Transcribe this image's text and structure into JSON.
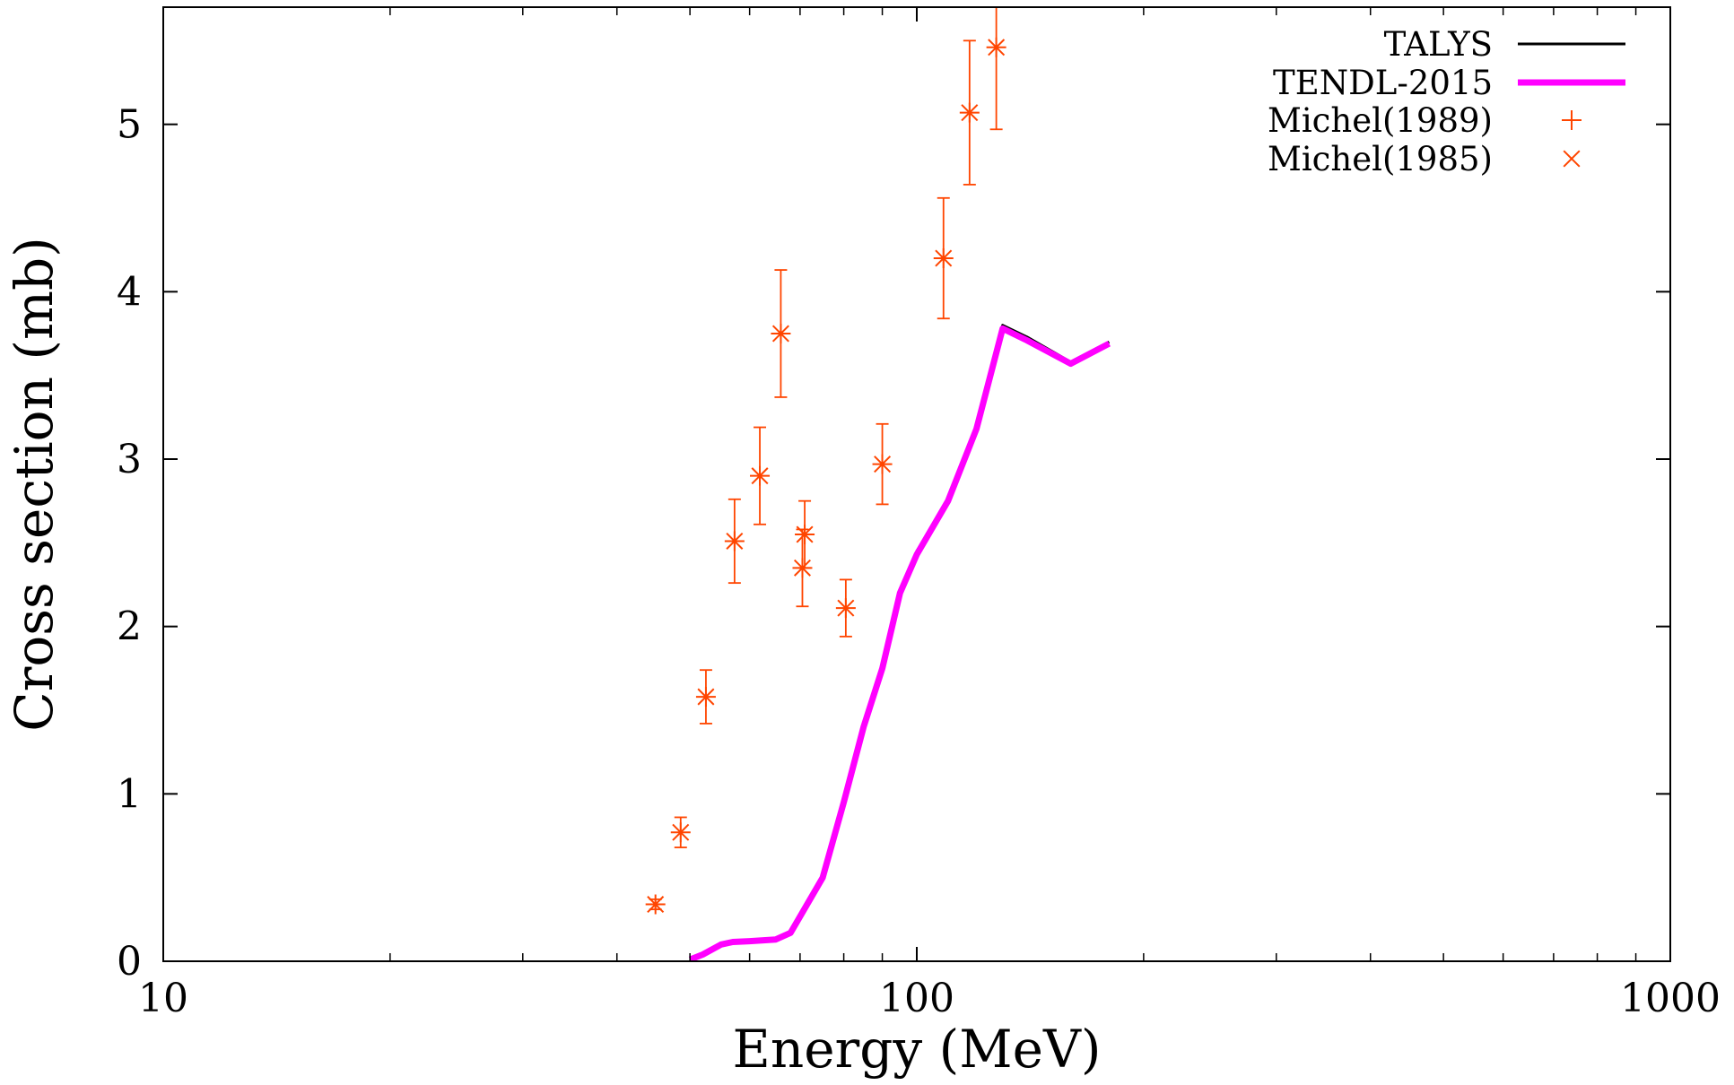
{
  "chart_data": {
    "type": "line",
    "xlabel": "Energy (MeV)",
    "ylabel": "Cross section (mb)",
    "xscale": "log",
    "xlim": [
      10,
      1000
    ],
    "ylim": [
      0,
      5.7
    ],
    "x_ticks": [
      {
        "value": 10,
        "label": "10"
      },
      {
        "value": 100,
        "label": "100"
      },
      {
        "value": 1000,
        "label": "1000"
      }
    ],
    "y_ticks": [
      {
        "value": 0,
        "label": "0"
      },
      {
        "value": 1,
        "label": "1"
      },
      {
        "value": 2,
        "label": "2"
      },
      {
        "value": 3,
        "label": "3"
      },
      {
        "value": 4,
        "label": "4"
      },
      {
        "value": 5,
        "label": "5"
      }
    ],
    "legend_position": "top-right",
    "grid": false,
    "series": [
      {
        "name": "TALYS",
        "kind": "line",
        "color": "#000000",
        "points": [
          [
            50,
            0.01
          ],
          [
            52,
            0.04
          ],
          [
            55,
            0.1
          ],
          [
            57,
            0.115
          ],
          [
            60,
            0.12
          ],
          [
            65,
            0.13
          ],
          [
            68,
            0.17
          ],
          [
            75,
            0.5
          ],
          [
            80,
            0.95
          ],
          [
            85,
            1.4
          ],
          [
            90,
            1.75
          ],
          [
            95,
            2.2
          ],
          [
            100,
            2.45
          ],
          [
            110,
            2.75
          ],
          [
            120,
            3.2
          ],
          [
            130,
            3.8
          ],
          [
            140,
            3.73
          ],
          [
            160,
            3.58
          ],
          [
            180,
            3.7
          ]
        ]
      },
      {
        "name": "TENDL-2015",
        "kind": "line",
        "color": "#ff00ff",
        "points": [
          [
            50,
            0.01
          ],
          [
            52,
            0.04
          ],
          [
            55,
            0.1
          ],
          [
            57,
            0.115
          ],
          [
            60,
            0.12
          ],
          [
            65,
            0.13
          ],
          [
            68,
            0.17
          ],
          [
            75,
            0.5
          ],
          [
            80,
            0.95
          ],
          [
            85,
            1.4
          ],
          [
            90,
            1.75
          ],
          [
            95,
            2.2
          ],
          [
            100,
            2.43
          ],
          [
            110,
            2.75
          ],
          [
            120,
            3.18
          ],
          [
            130,
            3.78
          ],
          [
            140,
            3.71
          ],
          [
            160,
            3.57
          ],
          [
            180,
            3.69
          ]
        ]
      },
      {
        "name": "Michel(1989)",
        "kind": "points",
        "marker": "plus",
        "color": "#ff4500",
        "points": [
          {
            "x": 45.0,
            "y": 0.34,
            "err": 0.03
          },
          {
            "x": 48.6,
            "y": 0.77,
            "err": 0.09
          },
          {
            "x": 52.5,
            "y": 1.58,
            "err": 0.16
          },
          {
            "x": 57.3,
            "y": 2.51,
            "err": 0.25
          },
          {
            "x": 61.9,
            "y": 2.9,
            "err": 0.29
          },
          {
            "x": 66.0,
            "y": 3.75,
            "err": 0.38
          },
          {
            "x": 70.5,
            "y": 2.35,
            "err": 0.23
          },
          {
            "x": 71.0,
            "y": 2.55,
            "err": 0.2
          },
          {
            "x": 80.5,
            "y": 2.11,
            "err": 0.17
          },
          {
            "x": 90.0,
            "y": 2.97,
            "err": 0.24
          },
          {
            "x": 108.5,
            "y": 4.2,
            "err": 0.36
          },
          {
            "x": 117.5,
            "y": 5.07,
            "err": 0.43
          },
          {
            "x": 127.5,
            "y": 5.46,
            "err": 0.49
          }
        ]
      },
      {
        "name": "Michel(1985)",
        "kind": "points",
        "marker": "cross",
        "color": "#ff4500",
        "points": [
          {
            "x": 45.0,
            "y": 0.34,
            "err": 0.03
          },
          {
            "x": 48.6,
            "y": 0.77,
            "err": 0.09
          },
          {
            "x": 52.5,
            "y": 1.58,
            "err": 0.16
          },
          {
            "x": 57.3,
            "y": 2.51,
            "err": 0.25
          },
          {
            "x": 61.9,
            "y": 2.9,
            "err": 0.29
          },
          {
            "x": 66.0,
            "y": 3.75,
            "err": 0.38
          },
          {
            "x": 70.5,
            "y": 2.35,
            "err": 0.23
          },
          {
            "x": 71.0,
            "y": 2.55,
            "err": 0.2
          },
          {
            "x": 80.5,
            "y": 2.11,
            "err": 0.17
          },
          {
            "x": 90.0,
            "y": 2.97,
            "err": 0.24
          },
          {
            "x": 108.5,
            "y": 4.2,
            "err": 0.36
          },
          {
            "x": 117.5,
            "y": 5.07,
            "err": 0.43
          },
          {
            "x": 127.5,
            "y": 5.46,
            "err": 0.49
          }
        ]
      }
    ]
  }
}
